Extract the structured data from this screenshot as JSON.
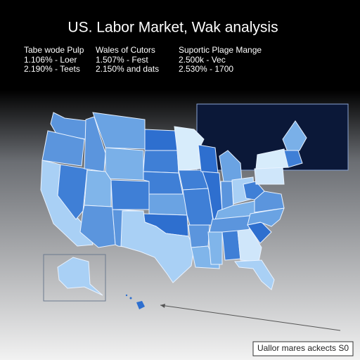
{
  "header": {
    "title": "US. Labor Market, Wak analysis"
  },
  "legend": {
    "columns": [
      {
        "heading": "Tabe wode Pulp",
        "items": [
          "1.106% - Loer",
          "2.190% - Teets"
        ]
      },
      {
        "heading": "Wales of Cutors",
        "items": [
          "1.507% - Fest",
          "2.150% and dats"
        ]
      },
      {
        "heading": "Suportic Plage Mange",
        "items": [
          "2.500k - Vec",
          "2.530% - 1700"
        ]
      }
    ]
  },
  "footer": {
    "note": "Uallor mares ackects S0"
  }
}
